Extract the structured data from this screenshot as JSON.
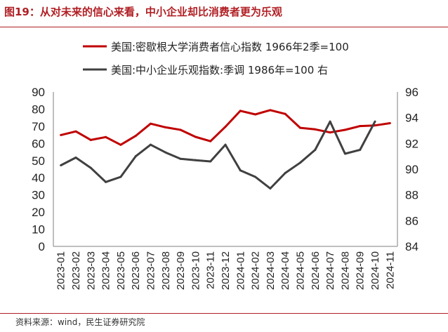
{
  "header": {
    "title": "图19：从对未来的信心来看，中小企业却比消费者更为乐观"
  },
  "footer": {
    "source": "资料来源：wind，民生证券研究院"
  },
  "colors": {
    "series1": "#c00000",
    "series2": "#404040",
    "rule": "#b01f24"
  },
  "chart_data": {
    "type": "line",
    "title": "",
    "grid": false,
    "legend_position": "top-center",
    "x": [
      "2023-01",
      "2023-02",
      "2023-03",
      "2023-04",
      "2023-05",
      "2023-06",
      "2023-07",
      "2023-08",
      "2023-09",
      "2023-10",
      "2023-11",
      "2023-12",
      "2024-01",
      "2024-02",
      "2024-03",
      "2024-04",
      "2024-05",
      "2024-06",
      "2024-07",
      "2024-08",
      "2024-09",
      "2024-10",
      "2024-11"
    ],
    "x_tick_labels": [
      "2023-01",
      "2023-02",
      "2023-03",
      "2023-04",
      "2023-05",
      "2023-06",
      "2023-07",
      "2023-08",
      "2023-09",
      "2023-10",
      "2023-11",
      "2023-12",
      "2024-01",
      "2024-02",
      "2024-03",
      "2024-04",
      "2024-05",
      "2024-06",
      "2024-07",
      "2024-08",
      "2024-09",
      "2024-10",
      "2024-11"
    ],
    "y_left": {
      "min": 0,
      "max": 90,
      "ticks": [
        "0",
        "10",
        "20",
        "30",
        "40",
        "50",
        "60",
        "70",
        "80",
        "90"
      ]
    },
    "y_right": {
      "min": 84,
      "max": 96,
      "ticks": [
        "84",
        "86",
        "88",
        "90",
        "92",
        "94",
        "96"
      ]
    },
    "series": [
      {
        "name": "美国:密歇根大学消费者信心指数 1966年2季=100",
        "axis": "left",
        "values": [
          64.9,
          67.0,
          62.0,
          63.7,
          59.2,
          64.4,
          71.5,
          69.4,
          67.9,
          63.8,
          61.3,
          69.7,
          79.0,
          76.9,
          79.4,
          77.2,
          69.1,
          68.2,
          66.4,
          67.9,
          70.1,
          70.5,
          71.8
        ]
      },
      {
        "name": "美国:中小企业乐观指数:季调 1986年=100 右",
        "axis": "right",
        "values": [
          90.3,
          90.9,
          90.1,
          89.0,
          89.4,
          91.0,
          91.9,
          91.3,
          90.8,
          90.7,
          90.6,
          91.9,
          89.9,
          89.4,
          88.5,
          89.7,
          90.5,
          91.5,
          93.7,
          91.2,
          91.5,
          93.7,
          null
        ]
      }
    ]
  }
}
